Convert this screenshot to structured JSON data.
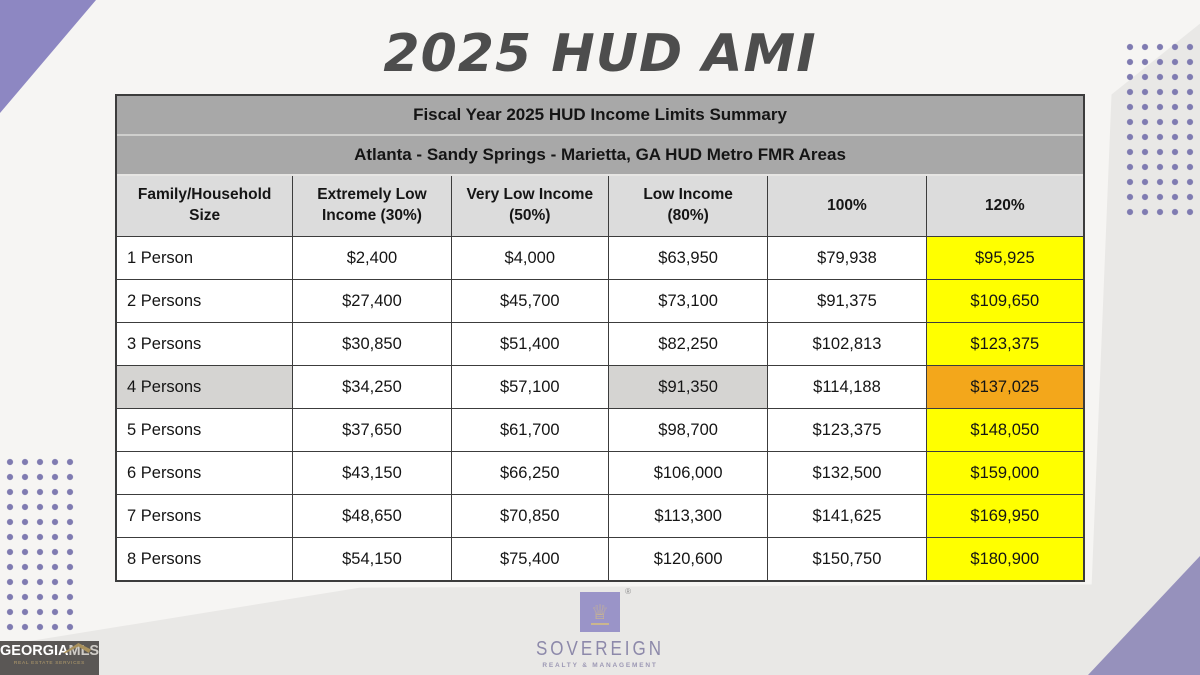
{
  "title": "2025 HUD AMI",
  "chart_data": {
    "type": "table",
    "title": "Fiscal Year 2025 HUD Income Limits Summary",
    "subtitle": "Atlanta - Sandy Springs - Marietta, GA HUD Metro FMR Areas",
    "columns": [
      "Family/Household Size",
      "Extremely Low Income (30%)",
      "Very Low Income (50%)",
      "Low Income (80%)",
      "100%",
      "120%"
    ],
    "rows": [
      {
        "label": "1 Person",
        "values": [
          "$2,400",
          "$4,000",
          "$63,950",
          "$79,938",
          "$95,925"
        ],
        "highlight": false
      },
      {
        "label": "2 Persons",
        "values": [
          "$27,400",
          "$45,700",
          "$73,100",
          "$91,375",
          "$109,650"
        ],
        "highlight": false
      },
      {
        "label": "3 Persons",
        "values": [
          "$30,850",
          "$51,400",
          "$82,250",
          "$102,813",
          "$123,375"
        ],
        "highlight": false
      },
      {
        "label": "4 Persons",
        "values": [
          "$34,250",
          "$57,100",
          "$91,350",
          "$114,188",
          "$137,025"
        ],
        "highlight": true
      },
      {
        "label": "5 Persons",
        "values": [
          "$37,650",
          "$61,700",
          "$98,700",
          "$123,375",
          "$148,050"
        ],
        "highlight": false
      },
      {
        "label": "6 Persons",
        "values": [
          "$43,150",
          "$66,250",
          "$106,000",
          "$132,500",
          "$159,000"
        ],
        "highlight": false
      },
      {
        "label": "7 Persons",
        "values": [
          "$48,650",
          "$70,850",
          "$113,300",
          "$141,625",
          "$169,950"
        ],
        "highlight": false
      },
      {
        "label": "8 Persons",
        "values": [
          "$54,150",
          "$75,400",
          "$120,600",
          "$150,750",
          "$180,900"
        ],
        "highlight": false
      }
    ]
  },
  "footer": {
    "sovereign": {
      "name": "SOVEREIGN",
      "tagline": "REALTY & MANAGEMENT",
      "mark": "®",
      "crown": "♕"
    },
    "georgiamls": {
      "part1": "GEORGIA",
      "part2": "MLS",
      "tagline": "REAL ESTATE SERVICES"
    }
  },
  "colors": {
    "accent_purple": "#8d87c2",
    "accent_purple_muted": "#9691bc",
    "dot_purple": "#7f7bb1",
    "header_gray": "#a8a8a8",
    "column_header_gray": "#dcdcdc",
    "shade_gray": "#d5d4d2",
    "highlight_yellow": "#ffff00",
    "highlight_orange": "#f3a71b",
    "title_gray": "#4d4d4d",
    "background_gray": "#e9e8e6"
  }
}
